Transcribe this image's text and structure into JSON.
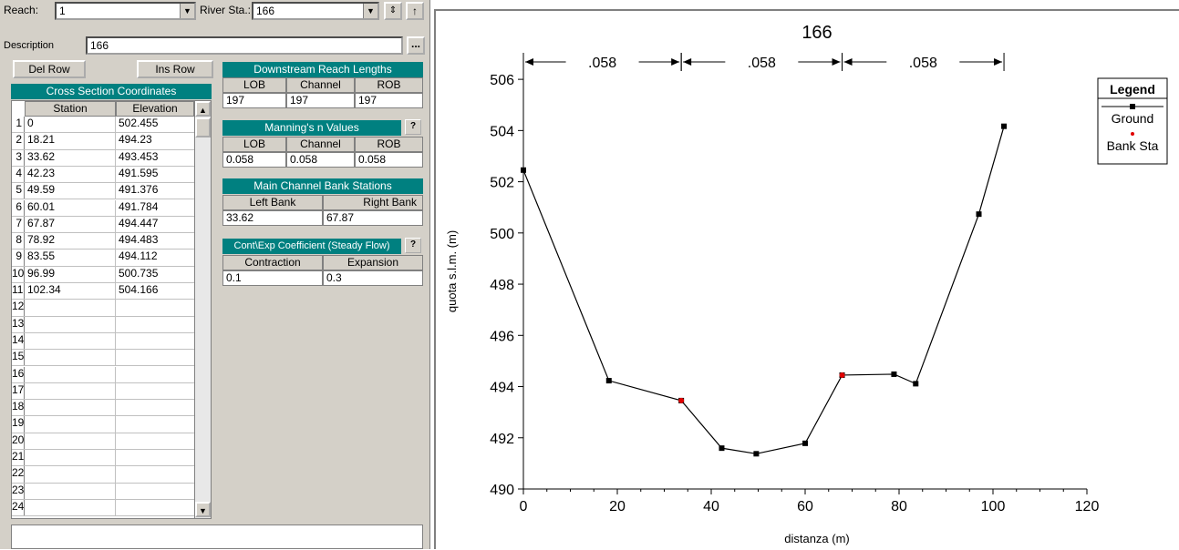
{
  "form": {
    "reach_label": "Reach:",
    "reach_value": "1",
    "river_sta_label": "River Sta.:",
    "river_sta_value": "166",
    "description_label": "Description",
    "description_value": "166",
    "del_row": "Del Row",
    "ins_row": "Ins Row",
    "ellipsis": "...",
    "help": "?"
  },
  "xs_table": {
    "title": "Cross Section Coordinates",
    "col_station": "Station",
    "col_elevation": "Elevation",
    "rows": [
      {
        "n": "1",
        "station": "0",
        "elevation": "502.455"
      },
      {
        "n": "2",
        "station": "18.21",
        "elevation": "494.23"
      },
      {
        "n": "3",
        "station": "33.62",
        "elevation": "493.453"
      },
      {
        "n": "4",
        "station": "42.23",
        "elevation": "491.595"
      },
      {
        "n": "5",
        "station": "49.59",
        "elevation": "491.376"
      },
      {
        "n": "6",
        "station": "60.01",
        "elevation": "491.784"
      },
      {
        "n": "7",
        "station": "67.87",
        "elevation": "494.447"
      },
      {
        "n": "8",
        "station": "78.92",
        "elevation": "494.483"
      },
      {
        "n": "9",
        "station": "83.55",
        "elevation": "494.112"
      },
      {
        "n": "10",
        "station": "96.99",
        "elevation": "500.735"
      },
      {
        "n": "11",
        "station": "102.34",
        "elevation": "504.166"
      },
      {
        "n": "12",
        "station": "",
        "elevation": ""
      },
      {
        "n": "13",
        "station": "",
        "elevation": ""
      },
      {
        "n": "14",
        "station": "",
        "elevation": ""
      },
      {
        "n": "15",
        "station": "",
        "elevation": ""
      },
      {
        "n": "16",
        "station": "",
        "elevation": ""
      },
      {
        "n": "17",
        "station": "",
        "elevation": ""
      },
      {
        "n": "18",
        "station": "",
        "elevation": ""
      },
      {
        "n": "19",
        "station": "",
        "elevation": ""
      },
      {
        "n": "20",
        "station": "",
        "elevation": ""
      },
      {
        "n": "21",
        "station": "",
        "elevation": ""
      },
      {
        "n": "22",
        "station": "",
        "elevation": ""
      },
      {
        "n": "23",
        "station": "",
        "elevation": ""
      },
      {
        "n": "24",
        "station": "",
        "elevation": ""
      }
    ]
  },
  "reach_lengths": {
    "title": "Downstream Reach Lengths",
    "lob_label": "LOB",
    "channel_label": "Channel",
    "rob_label": "ROB",
    "lob": "197",
    "channel": "197",
    "rob": "197"
  },
  "mannings": {
    "title": "Manning's n Values",
    "lob_label": "LOB",
    "channel_label": "Channel",
    "rob_label": "ROB",
    "lob": "0.058",
    "channel": "0.058",
    "rob": "0.058"
  },
  "bank_stations": {
    "title": "Main Channel Bank Stations",
    "left_label": "Left Bank",
    "right_label": "Right Bank",
    "left": "33.62",
    "right": "67.87"
  },
  "coefficients": {
    "title": "Cont\\Exp Coefficient (Steady Flow)",
    "contraction_label": "Contraction",
    "expansion_label": "Expansion",
    "contraction": "0.1",
    "expansion": "0.3"
  },
  "chart_data": {
    "type": "line",
    "title": "166",
    "xlabel": "distanza  (m)",
    "ylabel": "quota s.l.m.  (m)",
    "xlim": [
      0,
      120
    ],
    "ylim": [
      490,
      507
    ],
    "x_ticks": [
      0,
      20,
      40,
      60,
      80,
      100,
      120
    ],
    "y_ticks": [
      490,
      492,
      494,
      496,
      498,
      500,
      502,
      504,
      506
    ],
    "series": [
      {
        "name": "Ground",
        "color": "#000000",
        "x": [
          0,
          18.21,
          33.62,
          42.23,
          49.59,
          60.01,
          67.87,
          78.92,
          83.55,
          96.99,
          102.34
        ],
        "y": [
          502.455,
          494.23,
          493.453,
          491.595,
          491.376,
          491.784,
          494.447,
          494.483,
          494.112,
          500.735,
          504.166
        ]
      },
      {
        "name": "Bank Sta",
        "color": "#e00000",
        "x": [
          33.62,
          67.87
        ],
        "y": [
          493.453,
          494.447
        ]
      }
    ],
    "mannings_segments": [
      {
        "from": 0,
        "to": 33.62,
        "label": ".058"
      },
      {
        "from": 33.62,
        "to": 67.87,
        "label": ".058"
      },
      {
        "from": 67.87,
        "to": 102.34,
        "label": ".058"
      }
    ],
    "legend_title": "Legend",
    "legend_position": "top-right"
  }
}
